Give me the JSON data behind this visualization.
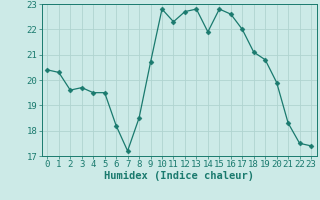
{
  "x": [
    0,
    1,
    2,
    3,
    4,
    5,
    6,
    7,
    8,
    9,
    10,
    11,
    12,
    13,
    14,
    15,
    16,
    17,
    18,
    19,
    20,
    21,
    22,
    23
  ],
  "y": [
    20.4,
    20.3,
    19.6,
    19.7,
    19.5,
    19.5,
    18.2,
    17.2,
    18.5,
    20.7,
    22.8,
    22.3,
    22.7,
    22.8,
    21.9,
    22.8,
    22.6,
    22.0,
    21.1,
    20.8,
    19.9,
    18.3,
    17.5,
    17.4
  ],
  "line_color": "#1a7a6e",
  "marker": "D",
  "marker_size": 2.5,
  "bg_color": "#cceae7",
  "grid_color": "#b0d4d0",
  "xlabel": "Humidex (Indice chaleur)",
  "ylim": [
    17,
    23
  ],
  "xlim": [
    -0.5,
    23.5
  ],
  "yticks": [
    17,
    18,
    19,
    20,
    21,
    22,
    23
  ],
  "xticks": [
    0,
    1,
    2,
    3,
    4,
    5,
    6,
    7,
    8,
    9,
    10,
    11,
    12,
    13,
    14,
    15,
    16,
    17,
    18,
    19,
    20,
    21,
    22,
    23
  ],
  "tick_fontsize": 6.5,
  "xlabel_fontsize": 7.5
}
